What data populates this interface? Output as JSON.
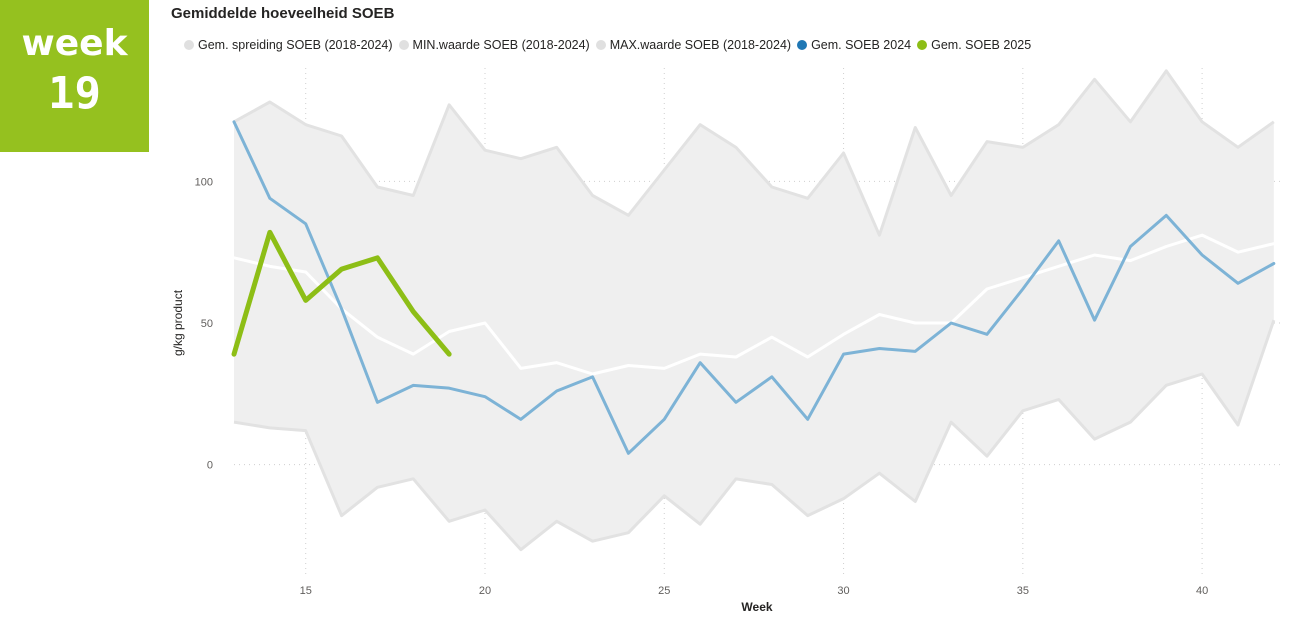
{
  "badge": {
    "word": "week",
    "number": "19"
  },
  "colors": {
    "badge_bg": "#95c11f",
    "band": "#efefef",
    "band_edge": "#e2e2e2",
    "avg_line": "#ffffff",
    "series_2024": "#7db3d6",
    "series_2025": "#8dbe16",
    "legend_2024_dot": "#1f77b4",
    "legend_2025_dot": "#8dbe16",
    "legend_grey_dot": "#e0e0e0"
  },
  "chart_data": {
    "type": "line",
    "title": "Gemiddelde hoeveelheid SOEB",
    "xlabel": "Week",
    "ylabel": "g/kg product",
    "xlim": [
      13,
      42.2
    ],
    "ylim": [
      -40,
      140
    ],
    "xticks": [
      15,
      20,
      25,
      30,
      35,
      40
    ],
    "yticks": [
      0,
      50,
      100
    ],
    "grid": true,
    "legend_position": "top",
    "legend": [
      {
        "name": "Gem. spreiding SOEB (2018-2024)",
        "color_key": "legend_grey_dot"
      },
      {
        "name": "MIN.waarde SOEB (2018-2024)",
        "color_key": "legend_grey_dot"
      },
      {
        "name": "MAX.waarde SOEB (2018-2024)",
        "color_key": "legend_grey_dot"
      },
      {
        "name": "Gem. SOEB 2024",
        "color_key": "legend_2024_dot"
      },
      {
        "name": "Gem. SOEB 2025",
        "color_key": "legend_2025_dot"
      }
    ],
    "band": {
      "x": [
        13,
        14,
        15,
        16,
        17,
        18,
        19,
        20,
        21,
        22,
        23,
        24,
        25,
        26,
        27,
        28,
        29,
        30,
        31,
        32,
        33,
        34,
        35,
        36,
        37,
        38,
        39,
        40,
        41,
        42
      ],
      "max": [
        121,
        128,
        120,
        116,
        98,
        95,
        127,
        111,
        108,
        112,
        95,
        88,
        104,
        120,
        112,
        98,
        94,
        110,
        81,
        119,
        95,
        114,
        112,
        120,
        136,
        121,
        139,
        121,
        112,
        121
      ],
      "min": [
        15,
        13,
        12,
        -18,
        -8,
        -5,
        -20,
        -16,
        -30,
        -20,
        -27,
        -24,
        -11,
        -21,
        -5,
        -7,
        -18,
        -12,
        -3,
        -13,
        15,
        3,
        19,
        23,
        9,
        15,
        28,
        32,
        14,
        51
      ]
    },
    "series": [
      {
        "name": "Gem. spreiding SOEB (2018-2024)",
        "x": [
          13,
          14,
          15,
          16,
          17,
          18,
          19,
          20,
          21,
          22,
          23,
          24,
          25,
          26,
          27,
          28,
          29,
          30,
          31,
          32,
          33,
          34,
          35,
          36,
          37,
          38,
          39,
          40,
          41,
          42
        ],
        "values": [
          73,
          70,
          68,
          55,
          45,
          39,
          47,
          50,
          34,
          36,
          32,
          35,
          34,
          39,
          38,
          45,
          38,
          46,
          53,
          50,
          50,
          62,
          66,
          70,
          74,
          72,
          77,
          81,
          75,
          78
        ]
      },
      {
        "name": "Gem. SOEB 2024",
        "x": [
          13,
          14,
          15,
          16,
          17,
          18,
          19,
          20,
          21,
          22,
          23,
          24,
          25,
          26,
          27,
          28,
          29,
          30,
          31,
          32,
          33,
          34,
          35,
          36,
          37,
          38,
          39,
          40,
          41,
          42
        ],
        "values": [
          121,
          94,
          85,
          55,
          22,
          28,
          27,
          24,
          16,
          26,
          31,
          4,
          16,
          36,
          22,
          31,
          16,
          39,
          41,
          40,
          50,
          46,
          62,
          79,
          51,
          77,
          88,
          74,
          64,
          71
        ]
      },
      {
        "name": "Gem. SOEB 2025",
        "x": [
          13,
          14,
          15,
          16,
          17,
          18,
          19
        ],
        "values": [
          39,
          82,
          58,
          69,
          73,
          54,
          39
        ]
      }
    ]
  }
}
